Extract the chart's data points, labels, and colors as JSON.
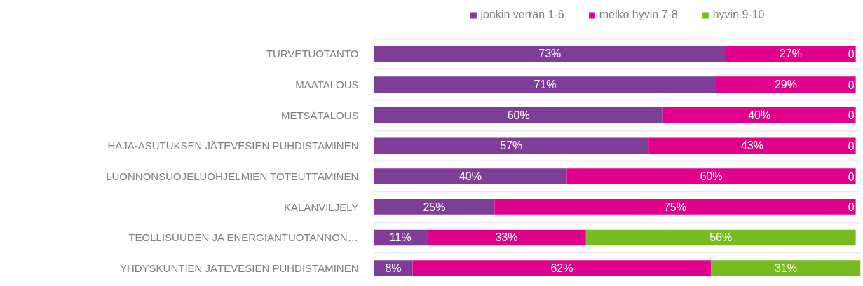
{
  "chart_data": {
    "type": "bar",
    "orientation": "horizontal",
    "stacked": true,
    "categories": [
      "TURVETUOTANTO",
      "MAATALOUS",
      "METSÄTALOUS",
      "HAJA-ASUTUKSEN JÄTEVESIEN PUHDISTAMINEN",
      "LUONNONSUOJELUOHJELMIEN TOTEUTTAMINEN",
      "KALANVILJELY",
      "TEOLLISUUDEN JA ENERGIANTUOTANNON…",
      "YHDYSKUNTIEN JÄTEVESIEN PUHDISTAMINEN"
    ],
    "series": [
      {
        "name": "jonkin verran 1-6",
        "color": "#7e3d96",
        "values": [
          73,
          71,
          60,
          57,
          40,
          25,
          11,
          8
        ],
        "value_labels": [
          "73%",
          "71%",
          "60%",
          "57%",
          "40%",
          "25%",
          "11%",
          "8%"
        ]
      },
      {
        "name": "melko hyvin 7-8",
        "color": "#e0008c",
        "values": [
          27,
          29,
          40,
          43,
          60,
          75,
          33,
          62
        ],
        "value_labels": [
          "27%",
          "29%",
          "40%",
          "43%",
          "60%",
          "75%",
          "33%",
          "62%"
        ]
      },
      {
        "name": "hyvin 9-10",
        "color": "#77bb1f",
        "values": [
          0,
          0,
          0,
          0,
          0,
          0,
          56,
          31
        ],
        "value_labels": [
          "0",
          "0",
          "0",
          "0",
          "0",
          "0",
          "56%",
          "31%"
        ]
      }
    ],
    "xlim": [
      0,
      101
    ],
    "tick_labels": "y",
    "grid": "y",
    "legend": "top"
  }
}
